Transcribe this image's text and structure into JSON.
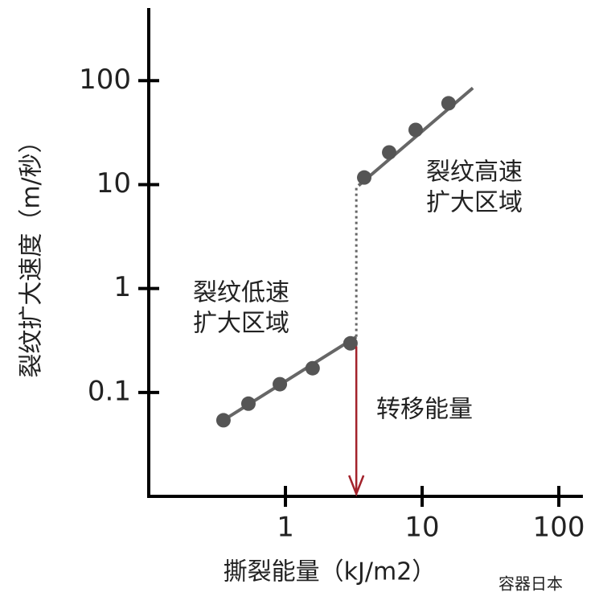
{
  "chart_data": {
    "type": "scatter",
    "xlabel": "撕裂能量（kJ/m2）",
    "ylabel": "裂纹扩大速度（m/秒）",
    "xscale": "log",
    "yscale": "log",
    "xlim": [
      0.1,
      150
    ],
    "ylim": [
      0.01,
      500
    ],
    "xticks": [
      1,
      10,
      100
    ],
    "yticks": [
      0.1,
      1,
      10,
      100
    ],
    "series": [
      {
        "color": "#555555",
        "x": [
          0.352,
          0.536,
          0.91,
          1.58,
          2.99
        ],
        "values": [
          0.054,
          0.078,
          0.12,
          0.171,
          0.297
        ]
      },
      {
        "color": "#555555",
        "x": [
          3.77,
          5.74,
          8.97,
          15.6
        ],
        "values": [
          11.7,
          20.4,
          33.6,
          60.6
        ]
      }
    ],
    "lines": [
      {
        "color": "#666666",
        "dash": false,
        "x": [
          0.32,
          3.3
        ],
        "values": [
          0.05,
          0.343
        ]
      },
      {
        "color": "#666666",
        "dash": false,
        "x": [
          3.43,
          23.5
        ],
        "values": [
          9.8,
          85
        ]
      },
      {
        "color": "#666666",
        "dash": true,
        "x": [
          3.3,
          3.3
        ],
        "values": [
          0.343,
          9.8
        ]
      }
    ],
    "annotations": [
      {
        "lines": [
          "裂纹低速",
          "扩大区域"
        ],
        "color": "#333333"
      },
      {
        "lines": [
          "裂纹高速",
          "扩大区域"
        ],
        "color": "#333333"
      },
      {
        "lines": [
          "转移能量"
        ],
        "color": "#a3222b"
      }
    ],
    "arrow_color": "#a3222b",
    "watermark": "容器日本"
  }
}
